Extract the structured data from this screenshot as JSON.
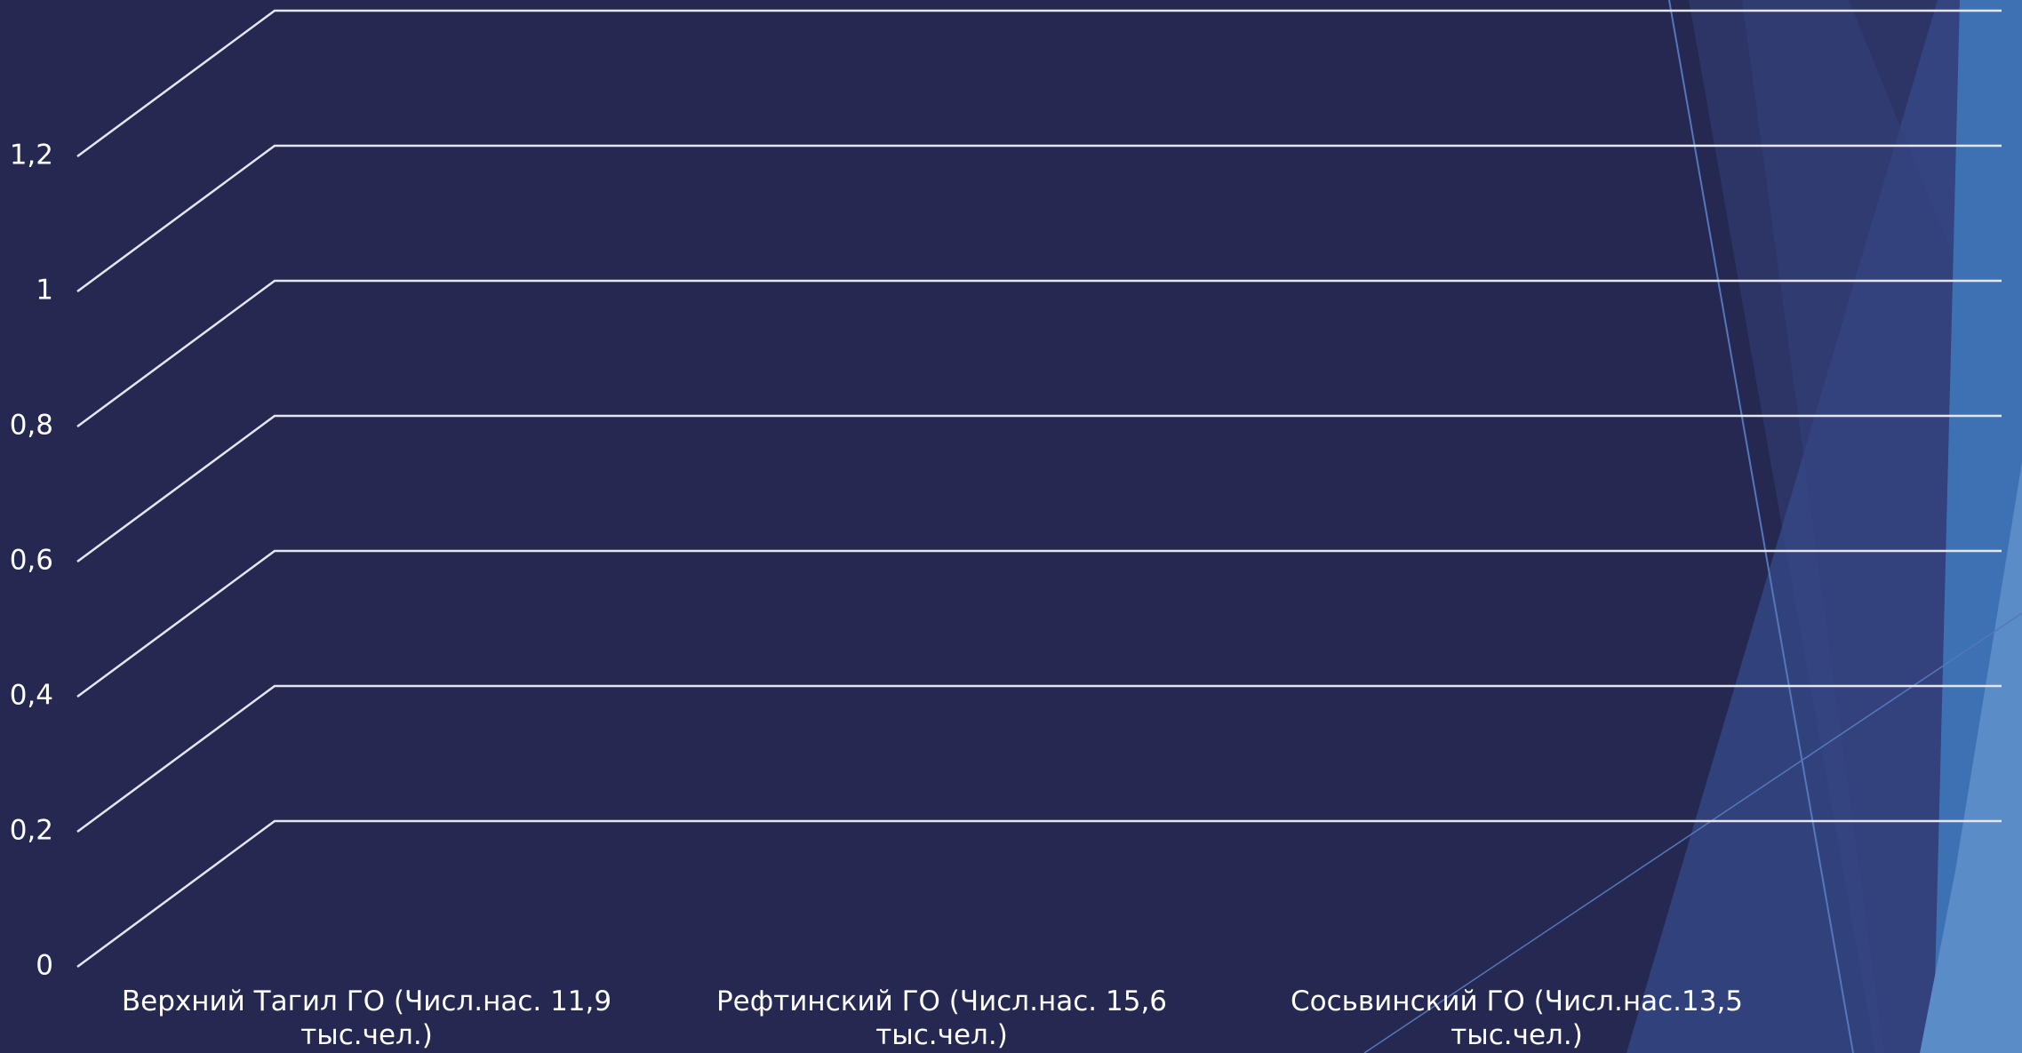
{
  "chart_data": {
    "type": "bar",
    "categories": [
      "Верхний Тагил ГО (Числ.нас. 11,9 тыс.чел.)",
      "Рефтинский ГО (Числ.нас. 15,6 тыс.чел.)",
      "Сосьвинский ГО (Числ.нас.13,5 тыс.чел.)"
    ],
    "ylim": [
      0,
      1.2
    ],
    "yticks": [
      0,
      {
        "value": 0.2,
        "label": "0,2"
      },
      {
        "value": 0.4,
        "label": "0,4"
      },
      {
        "value": 0.6,
        "label": "0,6"
      },
      {
        "value": 0.8,
        "label": "0,8"
      },
      1,
      {
        "value": 1.2,
        "label": "1,2"
      }
    ],
    "grid": true
  }
}
